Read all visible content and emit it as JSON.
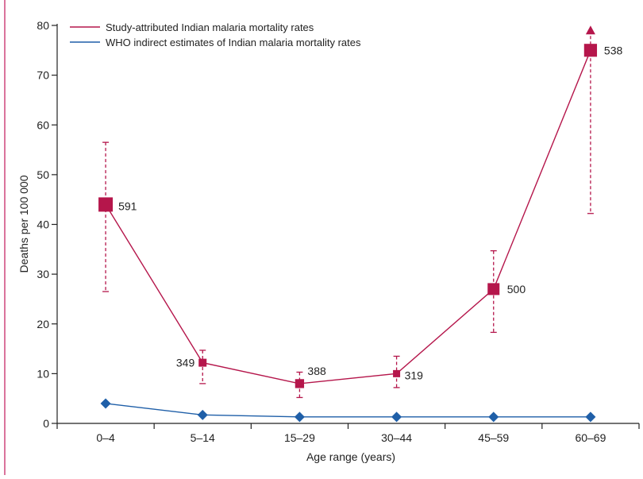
{
  "colors": {
    "study": "#b5164b",
    "who": "#1f5fa8",
    "axis": "#222222",
    "frame": "#c2185b"
  },
  "chart_data": {
    "type": "line",
    "title": "",
    "xlabel": "Age range (years)",
    "ylabel": "Deaths per 100 000",
    "ylim": [
      0,
      80
    ],
    "yticks": [
      "0",
      "10",
      "20",
      "30",
      "40",
      "50",
      "60",
      "70",
      "80"
    ],
    "categories": [
      "0–4",
      "5–14",
      "15–29",
      "30–44",
      "45–59",
      "60–69"
    ],
    "legend_position": "top-left",
    "series": [
      {
        "name": "Study-attributed Indian malaria mortality rates",
        "values": [
          44,
          12.2,
          8,
          10,
          27,
          75
        ],
        "error_low": [
          26.5,
          8,
          5.2,
          7.2,
          18.3,
          42.2
        ],
        "error_high": [
          56.5,
          14.7,
          10.3,
          13.5,
          34.7,
          79
        ],
        "point_labels": [
          "591",
          "349",
          "388",
          "319",
          "500",
          "538"
        ],
        "open_ended_upper": [
          false,
          false,
          false,
          false,
          false,
          true
        ]
      },
      {
        "name": "WHO indirect estimates of Indian malaria mortality rates",
        "values": [
          4,
          1.7,
          1.3,
          1.3,
          1.3,
          1.3
        ]
      }
    ]
  }
}
